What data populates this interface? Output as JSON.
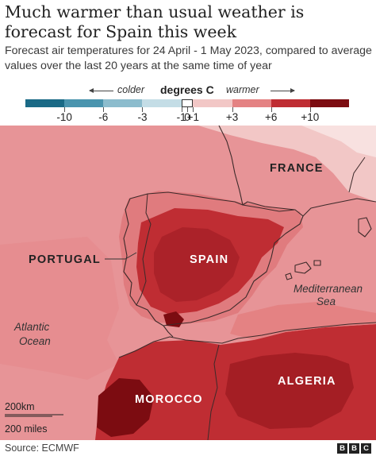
{
  "title": "Much warmer than usual weather is forecast for Spain this week",
  "subtitle": "Forecast air temperatures for 24 April - 1 May 2023, compared to average values over the last 20 years at the same time of year",
  "legend": {
    "colder_label": "colder",
    "warmer_label": "warmer",
    "unit_label": "degrees C",
    "tick_labels": [
      "-10",
      "-6",
      "-3",
      "-1",
      "0",
      "+1",
      "+3",
      "+6",
      "+10"
    ],
    "colors": [
      "#1a6a86",
      "#4a94ae",
      "#8cbccd",
      "#c4dde6",
      "#ffffff",
      "#f2c7c6",
      "#e48283",
      "#bf2d33",
      "#7c0c11"
    ]
  },
  "map": {
    "countries": {
      "france": "FRANCE",
      "portugal": "PORTUGAL",
      "spain": "SPAIN",
      "morocco": "MOROCCO",
      "algeria": "ALGERIA"
    },
    "seas": {
      "mediterranean": [
        "Mediterranean",
        "Sea"
      ],
      "atlantic": [
        "Atlantic",
        "Ocean"
      ]
    },
    "scale": {
      "km": "200km",
      "miles": "200 miles"
    },
    "colors": {
      "light_pink": "#f2c7c6",
      "mid_pink": "#e48283",
      "red": "#bf2d33",
      "dark_red": "#7c0c11"
    }
  },
  "footer": {
    "source": "Source: ECMWF",
    "logo_letters": [
      "B",
      "B",
      "C"
    ]
  }
}
